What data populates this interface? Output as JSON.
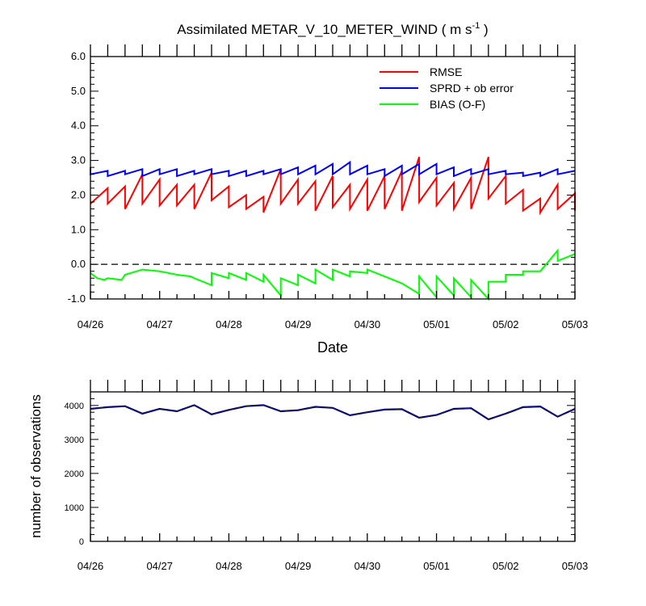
{
  "title": {
    "prefix": "Assimilated METAR_V_10_METER_WIND ( m s",
    "superscript": "-1",
    "suffix": " )"
  },
  "top_panel": {
    "xlabel": "Date",
    "yticks": [
      "6.0",
      "5.0",
      "4.0",
      "3.0",
      "2.0",
      "1.0",
      "0.0",
      "-1.0"
    ],
    "legend": [
      {
        "label": "RMSE",
        "color": "#ff0000"
      },
      {
        "label": "SPRD + ob error",
        "color": "#0000ff"
      },
      {
        "label": "BIAS (O-F)",
        "color": "#00ff00"
      }
    ]
  },
  "bottom_panel": {
    "ylabel": "number of observations",
    "yticks": [
      "4000",
      "3000",
      "2000",
      "1000",
      "0"
    ]
  },
  "xticks": [
    "04/26",
    "04/27",
    "04/28",
    "04/29",
    "04/30",
    "05/01",
    "05/02",
    "05/03"
  ],
  "chart_data": [
    {
      "type": "line",
      "title": "Assimilated METAR_V_10_METER_WIND ( m s-1 )",
      "xlabel": "Date",
      "ylabel": "",
      "ylim": [
        -1.0,
        6.0
      ],
      "xlim": [
        "04/26 00Z",
        "05/03 00Z"
      ],
      "x_unit": "days since 04/26 00Z",
      "reference_line": {
        "y": 0.0,
        "style": "dashed"
      },
      "series": [
        {
          "name": "RMSE",
          "color": "#ff0000",
          "points": [
            [
              0,
              1.75
            ],
            [
              0.25,
              2.2
            ],
            [
              0.25,
              1.75
            ],
            [
              0.5,
              2.25
            ],
            [
              0.5,
              1.6
            ],
            [
              0.75,
              2.6
            ],
            [
              0.75,
              1.75
            ],
            [
              1,
              2.45
            ],
            [
              1,
              1.7
            ],
            [
              1.25,
              2.3
            ],
            [
              1.25,
              1.7
            ],
            [
              1.5,
              2.3
            ],
            [
              1.5,
              1.6
            ],
            [
              1.75,
              2.65
            ],
            [
              1.75,
              1.85
            ],
            [
              2,
              2.25
            ],
            [
              2,
              1.65
            ],
            [
              2.25,
              2.0
            ],
            [
              2.25,
              1.6
            ],
            [
              2.5,
              1.95
            ],
            [
              2.5,
              1.5
            ],
            [
              2.75,
              2.75
            ],
            [
              2.75,
              1.75
            ],
            [
              3,
              2.45
            ],
            [
              3,
              1.75
            ],
            [
              3.25,
              2.4
            ],
            [
              3.25,
              1.55
            ],
            [
              3.5,
              2.55
            ],
            [
              3.5,
              1.65
            ],
            [
              3.75,
              2.3
            ],
            [
              3.75,
              1.6
            ],
            [
              4,
              2.45
            ],
            [
              4,
              1.55
            ],
            [
              4.25,
              2.55
            ],
            [
              4.25,
              1.6
            ],
            [
              4.5,
              2.7
            ],
            [
              4.5,
              1.55
            ],
            [
              4.75,
              3.1
            ],
            [
              4.75,
              1.8
            ],
            [
              5,
              2.5
            ],
            [
              5,
              1.7
            ],
            [
              5.25,
              2.35
            ],
            [
              5.25,
              1.6
            ],
            [
              5.5,
              2.5
            ],
            [
              5.5,
              1.6
            ],
            [
              5.75,
              3.1
            ],
            [
              5.75,
              1.9
            ],
            [
              6,
              2.55
            ],
            [
              6,
              1.75
            ],
            [
              6.25,
              2.15
            ],
            [
              6.25,
              1.55
            ],
            [
              6.5,
              1.9
            ],
            [
              6.5,
              1.5
            ],
            [
              6.75,
              2.3
            ],
            [
              6.75,
              1.6
            ],
            [
              7,
              2.05
            ],
            [
              7,
              1.55
            ]
          ]
        },
        {
          "name": "SPRD + ob error",
          "color": "#0000ff",
          "points": [
            [
              0,
              2.8
            ],
            [
              0,
              2.6
            ],
            [
              0.25,
              2.7
            ],
            [
              0.25,
              2.55
            ],
            [
              0.5,
              2.7
            ],
            [
              0.5,
              2.6
            ],
            [
              0.75,
              2.75
            ],
            [
              0.75,
              2.55
            ],
            [
              1,
              2.75
            ],
            [
              1,
              2.6
            ],
            [
              1.25,
              2.75
            ],
            [
              1.25,
              2.55
            ],
            [
              1.5,
              2.7
            ],
            [
              1.5,
              2.6
            ],
            [
              1.75,
              2.75
            ],
            [
              1.75,
              2.6
            ],
            [
              2,
              2.7
            ],
            [
              2,
              2.55
            ],
            [
              2.25,
              2.7
            ],
            [
              2.25,
              2.55
            ],
            [
              2.5,
              2.7
            ],
            [
              2.5,
              2.6
            ],
            [
              2.75,
              2.75
            ],
            [
              2.75,
              2.6
            ],
            [
              3,
              2.8
            ],
            [
              3,
              2.6
            ],
            [
              3.25,
              2.85
            ],
            [
              3.25,
              2.6
            ],
            [
              3.5,
              2.9
            ],
            [
              3.5,
              2.6
            ],
            [
              3.75,
              2.95
            ],
            [
              3.75,
              2.6
            ],
            [
              4,
              2.85
            ],
            [
              4,
              2.6
            ],
            [
              4.25,
              2.75
            ],
            [
              4.25,
              2.55
            ],
            [
              4.5,
              2.85
            ],
            [
              4.5,
              2.6
            ],
            [
              4.75,
              2.9
            ],
            [
              4.75,
              2.6
            ],
            [
              5,
              2.9
            ],
            [
              5,
              2.6
            ],
            [
              5.25,
              2.8
            ],
            [
              5.25,
              2.55
            ],
            [
              5.5,
              2.75
            ],
            [
              5.5,
              2.6
            ],
            [
              5.75,
              2.75
            ],
            [
              5.75,
              2.6
            ],
            [
              6,
              2.7
            ],
            [
              6,
              2.6
            ],
            [
              6.25,
              2.65
            ],
            [
              6.25,
              2.55
            ],
            [
              6.5,
              2.65
            ],
            [
              6.5,
              2.55
            ],
            [
              6.75,
              2.75
            ],
            [
              6.75,
              2.6
            ],
            [
              7,
              2.7
            ]
          ]
        },
        {
          "name": "BIAS (O-F)",
          "color": "#00ff00",
          "points": [
            [
              0,
              -0.25
            ],
            [
              0.1,
              -0.4
            ],
            [
              0.2,
              -0.45
            ],
            [
              0.25,
              -0.4
            ],
            [
              0.45,
              -0.45
            ],
            [
              0.5,
              -0.3
            ],
            [
              0.75,
              -0.15
            ],
            [
              1,
              -0.2
            ],
            [
              1.25,
              -0.3
            ],
            [
              1.45,
              -0.35
            ],
            [
              1.5,
              -0.4
            ],
            [
              1.75,
              -0.6
            ],
            [
              1.75,
              -0.25
            ],
            [
              2,
              -0.4
            ],
            [
              2,
              -0.25
            ],
            [
              2.25,
              -0.45
            ],
            [
              2.25,
              -0.25
            ],
            [
              2.5,
              -0.5
            ],
            [
              2.5,
              -0.3
            ],
            [
              2.75,
              -0.9
            ],
            [
              2.75,
              -0.4
            ],
            [
              3,
              -0.6
            ],
            [
              3,
              -0.3
            ],
            [
              3.25,
              -0.55
            ],
            [
              3.25,
              -0.15
            ],
            [
              3.5,
              -0.45
            ],
            [
              3.5,
              -0.15
            ],
            [
              3.75,
              -0.35
            ],
            [
              3.75,
              -0.2
            ],
            [
              4,
              -0.25
            ],
            [
              4,
              -0.15
            ],
            [
              4.25,
              -0.35
            ],
            [
              4.5,
              -0.55
            ],
            [
              4.75,
              -0.85
            ],
            [
              4.75,
              -0.35
            ],
            [
              5,
              -0.95
            ],
            [
              5,
              -0.35
            ],
            [
              5.25,
              -0.9
            ],
            [
              5.25,
              -0.4
            ],
            [
              5.5,
              -0.95
            ],
            [
              5.5,
              -0.45
            ],
            [
              5.75,
              -1.0
            ],
            [
              5.75,
              -0.5
            ],
            [
              6,
              -0.5
            ],
            [
              6,
              -0.3
            ],
            [
              6.25,
              -0.3
            ],
            [
              6.25,
              -0.2
            ],
            [
              6.5,
              -0.2
            ],
            [
              6.75,
              0.4
            ],
            [
              6.75,
              0.1
            ],
            [
              7,
              0.3
            ]
          ]
        }
      ]
    },
    {
      "type": "line",
      "title": "",
      "xlabel": "",
      "ylabel": "number of observations",
      "ylim": [
        0,
        4400
      ],
      "x_unit": "days since 04/26 00Z",
      "series": [
        {
          "name": "",
          "color": "#00008b",
          "points": [
            [
              0,
              3900
            ],
            [
              0.25,
              3950
            ],
            [
              0.5,
              3980
            ],
            [
              0.75,
              3760
            ],
            [
              1,
              3900
            ],
            [
              1.25,
              3830
            ],
            [
              1.5,
              4010
            ],
            [
              1.75,
              3740
            ],
            [
              2,
              3870
            ],
            [
              2.25,
              3980
            ],
            [
              2.5,
              4010
            ],
            [
              2.75,
              3830
            ],
            [
              3,
              3860
            ],
            [
              3.25,
              3960
            ],
            [
              3.5,
              3930
            ],
            [
              3.75,
              3710
            ],
            [
              4,
              3800
            ],
            [
              4.25,
              3880
            ],
            [
              4.5,
              3890
            ],
            [
              4.75,
              3640
            ],
            [
              5,
              3720
            ],
            [
              5.25,
              3900
            ],
            [
              5.5,
              3920
            ],
            [
              5.75,
              3590
            ],
            [
              6,
              3760
            ],
            [
              6.25,
              3950
            ],
            [
              6.5,
              3970
            ],
            [
              6.75,
              3670
            ],
            [
              7,
              3900
            ]
          ]
        }
      ]
    }
  ]
}
